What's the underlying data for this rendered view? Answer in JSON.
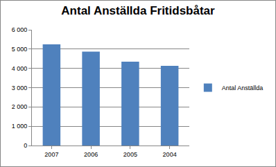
{
  "chart_data": {
    "type": "bar",
    "title": "Antal Anställda Fritidsbåtar",
    "categories": [
      "2007",
      "2006",
      "2005",
      "2004"
    ],
    "series": [
      {
        "name": "Antal Anställda",
        "color": "#4f81bd",
        "values": [
          5250,
          4870,
          4350,
          4130
        ]
      }
    ],
    "ylim": [
      0,
      6000
    ],
    "yticks": [
      0,
      {
        "value": 1000,
        "label": "1 000"
      },
      {
        "value": 2000,
        "label": "2 000"
      },
      {
        "value": 3000,
        "label": "3 000"
      },
      {
        "value": 4000,
        "label": "4 000"
      },
      {
        "value": 5000,
        "label": "5 000"
      },
      {
        "value": 6000,
        "label": "6 000"
      }
    ],
    "grid": true,
    "legend": "right"
  }
}
